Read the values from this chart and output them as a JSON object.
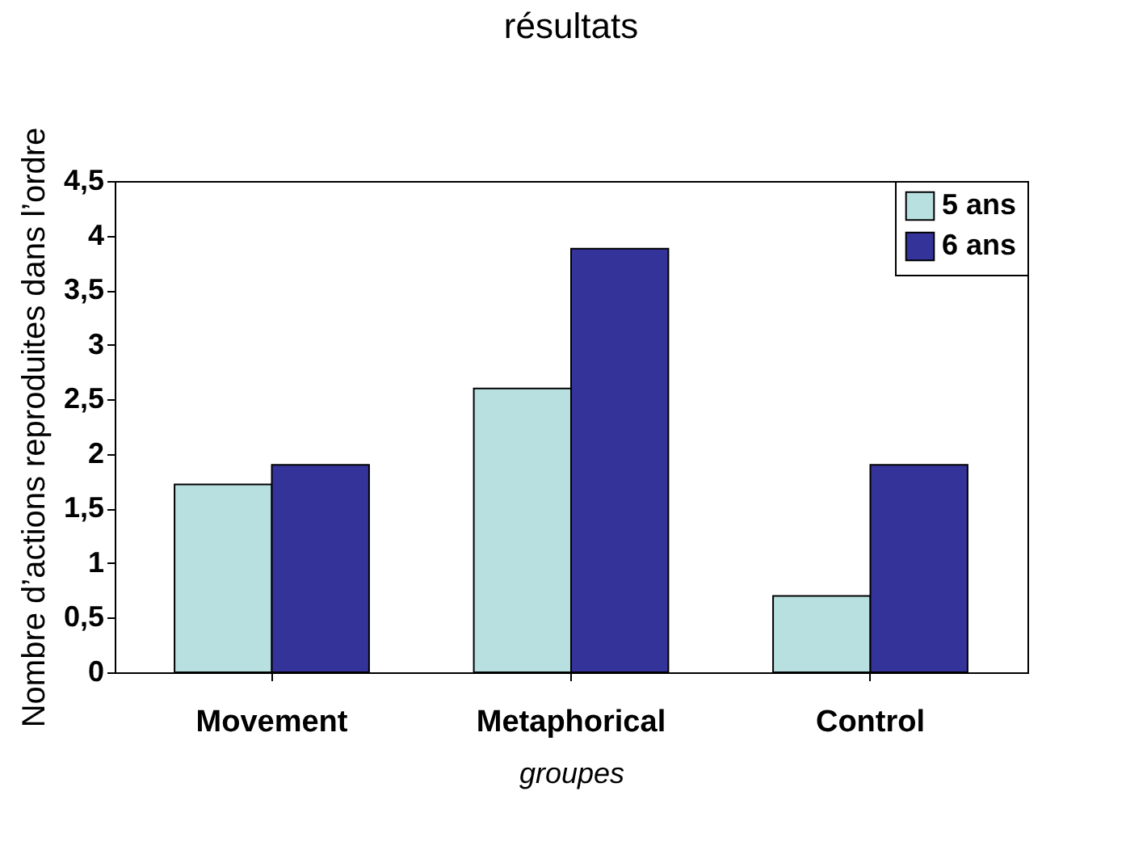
{
  "chart_data": {
    "type": "bar",
    "title": "résultats",
    "xlabel": "groupes",
    "ylabel": "Nombre d’actions reproduites dans l’ordre",
    "categories": [
      "Movement",
      "Metaphorical",
      "Control"
    ],
    "series": [
      {
        "name": "5 ans",
        "color": "#b8e0e0",
        "values": [
          1.72,
          2.6,
          0.7
        ]
      },
      {
        "name": "6 ans",
        "color": "#333399",
        "values": [
          1.9,
          3.88,
          1.9
        ]
      }
    ],
    "ylim": [
      0,
      4.5
    ],
    "yticks": [
      0,
      {
        "value": 0.5,
        "label": "0,5"
      },
      1,
      {
        "value": 1.5,
        "label": "1,5"
      },
      2,
      {
        "value": 2.5,
        "label": "2,5"
      },
      3,
      {
        "value": 3.5,
        "label": "3,5"
      },
      4,
      {
        "value": 4.5,
        "label": "4,5"
      }
    ],
    "grid": false,
    "legend": "top right"
  }
}
